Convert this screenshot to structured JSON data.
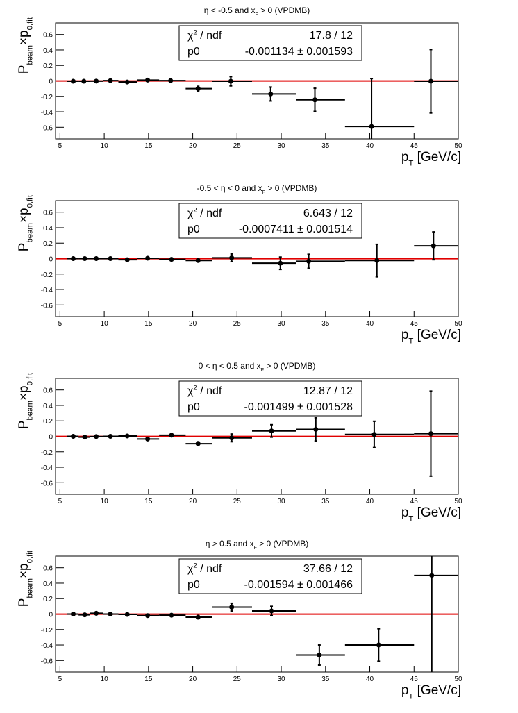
{
  "chart_data": [
    {
      "type": "errorbar",
      "title": [
        {
          "text": "η < -0.5 and x"
        },
        {
          "text": "F",
          "sub": true
        },
        {
          "text": " > 0 (VPDMB)"
        }
      ],
      "xlabel": [
        {
          "text": "p"
        },
        {
          "text": "T",
          "sub": true
        },
        {
          "text": " [GeV/c]"
        }
      ],
      "ylabel": [
        {
          "text": "P"
        },
        {
          "text": "beam",
          "sub": true
        },
        {
          "text": "×p"
        },
        {
          "text": "0,fit",
          "sub": true
        }
      ],
      "stats": {
        "chi2_name": [
          {
            "text": "χ"
          },
          {
            "text": "2",
            "sup": true
          },
          {
            "text": " / ndf"
          }
        ],
        "chi2": "17.8 / 12",
        "fit_name": "p0"
      },
      "fit": {
        "value": -0.001134,
        "label": "-0.001134 ± 0.001593"
      },
      "bins": [
        5.8,
        7.1,
        8.4,
        9.9,
        11.6,
        13.7,
        16.2,
        19.2,
        22.2,
        26.7,
        31.7,
        37.2,
        45,
        50
      ],
      "x": [
        6.5,
        7.7,
        9.1,
        10.7,
        12.6,
        14.9,
        17.5,
        20.6,
        24.3,
        28.8,
        33.8,
        40.2,
        46.9
      ],
      "values": [
        -0.005,
        -0.005,
        -0.003,
        0.003,
        -0.015,
        0.01,
        0.003,
        -0.1,
        -0.005,
        -0.17,
        -0.245,
        -0.59,
        -0.005
      ],
      "errors": [
        0.012,
        0.012,
        0.012,
        0.012,
        0.012,
        0.012,
        0.012,
        0.03,
        0.06,
        0.09,
        0.15,
        0.62,
        0.41
      ],
      "color": "#000000",
      "fit_color": "#e00000",
      "xlim": [
        4.5,
        50
      ],
      "xticks": [
        5,
        10,
        15,
        20,
        25,
        30,
        35,
        40,
        45,
        50
      ],
      "ylim": [
        -0.75,
        0.75
      ],
      "yticks": [
        -0.6,
        -0.4,
        -0.2,
        0,
        0.2,
        0.4,
        0.6
      ]
    },
    {
      "type": "errorbar",
      "title": [
        {
          "text": "-0.5 < η < 0 and x"
        },
        {
          "text": "F",
          "sub": true
        },
        {
          "text": " > 0 (VPDMB)"
        }
      ],
      "xlabel": [
        {
          "text": "p"
        },
        {
          "text": "T",
          "sub": true
        },
        {
          "text": " [GeV/c]"
        }
      ],
      "ylabel": [
        {
          "text": "P"
        },
        {
          "text": "beam",
          "sub": true
        },
        {
          "text": "×p"
        },
        {
          "text": "0,fit",
          "sub": true
        }
      ],
      "stats": {
        "chi2_name": [
          {
            "text": "χ"
          },
          {
            "text": "2",
            "sup": true
          },
          {
            "text": " / ndf"
          }
        ],
        "chi2": "6.643 / 12",
        "fit_name": "p0"
      },
      "fit": {
        "value": -0.0007411,
        "label": "-0.0007411 ± 0.001514"
      },
      "bins": [
        5.8,
        7.1,
        8.4,
        9.9,
        11.6,
        13.7,
        16.2,
        19.2,
        22.2,
        26.7,
        31.7,
        37.2,
        45,
        50
      ],
      "x": [
        6.5,
        7.8,
        9.1,
        10.7,
        12.6,
        14.9,
        17.6,
        20.6,
        24.4,
        29.9,
        33.1,
        40.8,
        47.2
      ],
      "values": [
        0,
        0,
        0,
        0,
        -0.015,
        0.005,
        -0.01,
        -0.025,
        0.01,
        -0.06,
        -0.035,
        -0.025,
        0.165
      ],
      "errors": [
        0.012,
        0.012,
        0.012,
        0.012,
        0.012,
        0.012,
        0.012,
        0.02,
        0.05,
        0.08,
        0.09,
        0.21,
        0.18
      ],
      "color": "#000000",
      "fit_color": "#e00000",
      "xlim": [
        4.5,
        50
      ],
      "xticks": [
        5,
        10,
        15,
        20,
        25,
        30,
        35,
        40,
        45,
        50
      ],
      "ylim": [
        -0.75,
        0.75
      ],
      "yticks": [
        -0.6,
        -0.4,
        -0.2,
        0,
        0.2,
        0.4,
        0.6
      ]
    },
    {
      "type": "errorbar",
      "title": [
        {
          "text": "0 < η < 0.5 and x"
        },
        {
          "text": "F",
          "sub": true
        },
        {
          "text": " > 0 (VPDMB)"
        }
      ],
      "xlabel": [
        {
          "text": "p"
        },
        {
          "text": "T",
          "sub": true
        },
        {
          "text": " [GeV/c]"
        }
      ],
      "ylabel": [
        {
          "text": "P"
        },
        {
          "text": "beam",
          "sub": true
        },
        {
          "text": "×p"
        },
        {
          "text": "0,fit",
          "sub": true
        }
      ],
      "stats": {
        "chi2_name": [
          {
            "text": "χ"
          },
          {
            "text": "2",
            "sup": true
          },
          {
            "text": " / ndf"
          }
        ],
        "chi2": "12.87 / 12",
        "fit_name": "p0"
      },
      "fit": {
        "value": -0.001499,
        "label": "-0.001499 ± 0.001528"
      },
      "bins": [
        5.8,
        7.1,
        8.4,
        9.9,
        11.6,
        13.7,
        16.2,
        19.2,
        22.2,
        26.7,
        31.7,
        37.2,
        45,
        50
      ],
      "x": [
        6.5,
        7.8,
        9.1,
        10.7,
        12.6,
        14.9,
        17.6,
        20.6,
        24.4,
        28.9,
        33.9,
        40.5,
        46.9
      ],
      "values": [
        0,
        -0.01,
        -0.003,
        0,
        0.005,
        -0.035,
        0.015,
        -0.095,
        -0.02,
        0.07,
        0.09,
        0.025,
        0.035
      ],
      "errors": [
        0.012,
        0.012,
        0.012,
        0.012,
        0.012,
        0.012,
        0.015,
        0.025,
        0.05,
        0.08,
        0.15,
        0.17,
        0.55
      ],
      "color": "#000000",
      "fit_color": "#e00000",
      "xlim": [
        4.5,
        50
      ],
      "xticks": [
        5,
        10,
        15,
        20,
        25,
        30,
        35,
        40,
        45,
        50
      ],
      "ylim": [
        -0.75,
        0.75
      ],
      "yticks": [
        -0.6,
        -0.4,
        -0.2,
        0,
        0.2,
        0.4,
        0.6
      ]
    },
    {
      "type": "errorbar",
      "title": [
        {
          "text": "η > 0.5 and x"
        },
        {
          "text": "F",
          "sub": true
        },
        {
          "text": " > 0 (VPDMB)"
        }
      ],
      "xlabel": [
        {
          "text": "p"
        },
        {
          "text": "T",
          "sub": true
        },
        {
          "text": " [GeV/c]"
        }
      ],
      "ylabel": [
        {
          "text": "P"
        },
        {
          "text": "beam",
          "sub": true
        },
        {
          "text": "×p"
        },
        {
          "text": "0,fit",
          "sub": true
        }
      ],
      "stats": {
        "chi2_name": [
          {
            "text": "χ"
          },
          {
            "text": "2",
            "sup": true
          },
          {
            "text": " / ndf"
          }
        ],
        "chi2": "37.66 / 12",
        "fit_name": "p0"
      },
      "fit": {
        "value": -0.001594,
        "label": "-0.001594 ± 0.001466"
      },
      "bins": [
        5.8,
        7.1,
        8.4,
        9.9,
        11.6,
        13.7,
        16.2,
        19.2,
        22.2,
        26.7,
        31.7,
        37.2,
        45,
        50
      ],
      "x": [
        6.5,
        7.8,
        9.1,
        10.7,
        12.6,
        14.9,
        17.6,
        20.6,
        24.4,
        28.9,
        34.3,
        41,
        47
      ],
      "values": [
        0,
        -0.01,
        0.01,
        0,
        -0.005,
        -0.02,
        -0.015,
        -0.04,
        0.09,
        0.04,
        -0.53,
        -0.4,
        0.5
      ],
      "errors": [
        0.012,
        0.012,
        0.012,
        0.012,
        0.012,
        0.012,
        0.012,
        0.02,
        0.05,
        0.06,
        0.13,
        0.21,
        1.3
      ],
      "color": "#000000",
      "fit_color": "#e00000",
      "xlim": [
        4.5,
        50
      ],
      "xticks": [
        5,
        10,
        15,
        20,
        25,
        30,
        35,
        40,
        45,
        50
      ],
      "ylim": [
        -0.75,
        0.75
      ],
      "yticks": [
        -0.6,
        -0.4,
        -0.2,
        0,
        0.2,
        0.4,
        0.6
      ]
    }
  ]
}
